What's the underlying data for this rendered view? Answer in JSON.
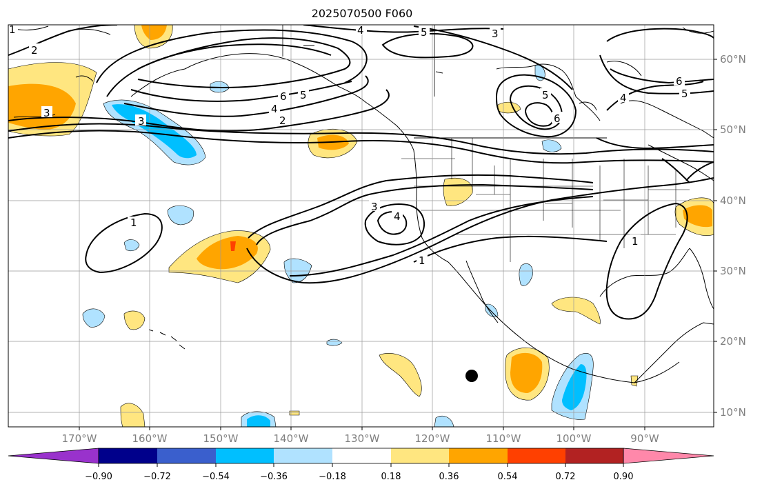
{
  "title": "2025070500 F060",
  "lat_labels": [
    "60°N",
    "50°N",
    "40°N",
    "30°N",
    "20°N",
    "10°N"
  ],
  "lon_labels": [
    "170°W",
    "160°W",
    "150°W",
    "140°W",
    "130°W",
    "120°W",
    "110°W",
    "100°W",
    "90°W"
  ],
  "colorbar": {
    "ticks": [
      "−0.90",
      "−0.72",
      "−0.54",
      "−0.36",
      "−0.18",
      "0.18",
      "0.36",
      "0.54",
      "0.72",
      "0.90"
    ],
    "colors": [
      "#9932cc",
      "#00008b",
      "#3a5fcd",
      "#00bfff",
      "#b0e2ff",
      "#ffffff",
      "#ffe680",
      "#ffa500",
      "#ff4000",
      "#b22222",
      "#ff88aa"
    ]
  },
  "contour_labels": [
    "1",
    "2",
    "3",
    "4",
    "5",
    "6"
  ],
  "marker": "black-dot"
}
